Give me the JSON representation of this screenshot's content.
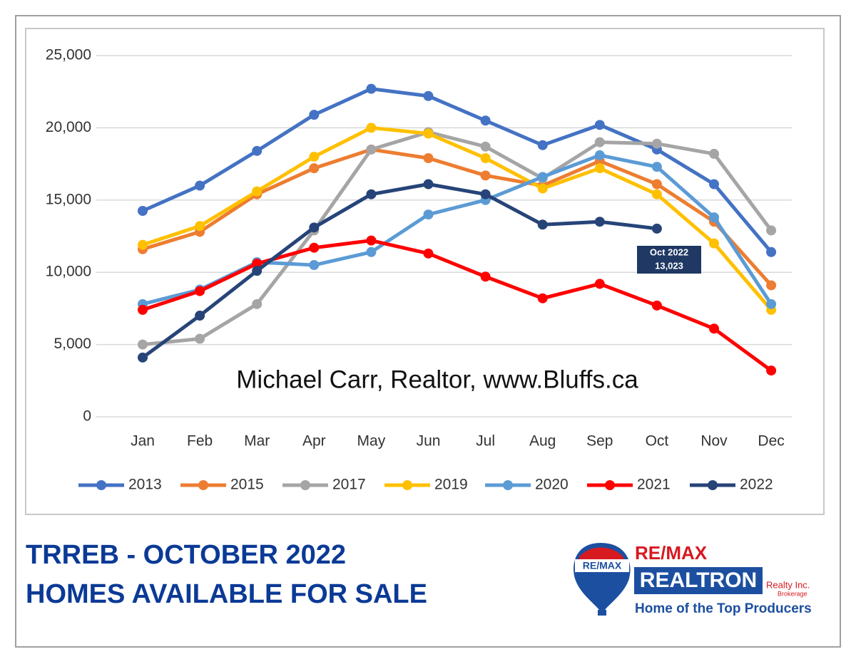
{
  "chart_data": {
    "type": "line",
    "categories": [
      "Jan",
      "Feb",
      "Mar",
      "Apr",
      "May",
      "Jun",
      "Jul",
      "Aug",
      "Sep",
      "Oct",
      "Nov",
      "Dec"
    ],
    "series": [
      {
        "name": "2013",
        "color": "#4472c4",
        "values": [
          14250,
          16000,
          18400,
          20900,
          22700,
          22200,
          20500,
          18800,
          20200,
          18500,
          16100,
          11400
        ]
      },
      {
        "name": "2015",
        "color": "#ed7d31",
        "values": [
          11600,
          12800,
          15400,
          17200,
          18500,
          17900,
          16700,
          16000,
          17700,
          16100,
          13500,
          9100
        ]
      },
      {
        "name": "2017",
        "color": "#a5a5a5",
        "values": [
          5000,
          5400,
          7800,
          12900,
          18500,
          19700,
          18700,
          16500,
          19000,
          18900,
          18200,
          12900
        ]
      },
      {
        "name": "2019",
        "color": "#ffc000",
        "values": [
          11900,
          13200,
          15600,
          18000,
          20000,
          19600,
          17900,
          15800,
          17200,
          15400,
          12000,
          7400
        ]
      },
      {
        "name": "2020",
        "color": "#5b9bd5",
        "values": [
          7800,
          8800,
          10700,
          10500,
          11400,
          14000,
          15000,
          16600,
          18100,
          17300,
          13800,
          7800
        ]
      },
      {
        "name": "2021",
        "color": "#ff0000",
        "values": [
          7400,
          8700,
          10600,
          11700,
          12200,
          11300,
          9700,
          8200,
          9200,
          7700,
          6100,
          3200
        ]
      },
      {
        "name": "2022",
        "color": "#264478",
        "values": [
          4100,
          7000,
          10100,
          13100,
          15400,
          16100,
          15400,
          13300,
          13500,
          13023,
          null,
          null
        ]
      }
    ],
    "ylim": [
      0,
      25000
    ],
    "yticks": [
      0,
      {
        "value": 5000,
        "label": "5,000"
      },
      {
        "value": 10000,
        "label": "10,000"
      },
      {
        "value": 15000,
        "label": "15,000"
      },
      {
        "value": 20000,
        "label": "20,000"
      },
      {
        "value": 25000,
        "label": "25,000"
      }
    ],
    "grid": true,
    "legend": "bottom",
    "annotation": {
      "lines": [
        "Oct 2022",
        "13,023"
      ]
    },
    "watermark": "Michael Carr, Realtor, www.Bluffs.ca"
  },
  "footer": {
    "title_lines": [
      "TRREB - OCTOBER 2022",
      "HOMES AVAILABLE FOR SALE"
    ],
    "logo": {
      "balloon": "RE/MAX",
      "brand": "RE/MAX",
      "name": "REALTRON",
      "suffix": "Realty Inc.",
      "sub": "Brokerage",
      "tagline": "Home of the Top Producers"
    }
  }
}
